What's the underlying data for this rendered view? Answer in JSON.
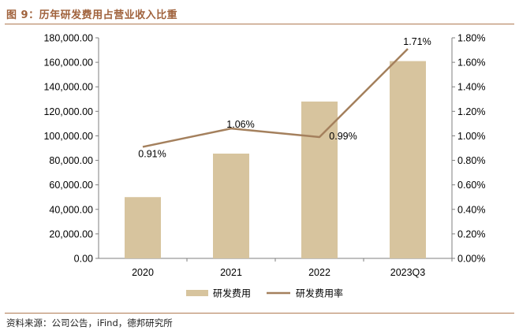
{
  "figure_title": "图 9：历年研发费用占营业收入比重",
  "source_text": "资料来源：公司公告，iFind，德邦研究所",
  "colors": {
    "bar": "#d7c49e",
    "line": "#a4805d",
    "title": "#a0623c",
    "rule": "#b07a52"
  },
  "chart_data": {
    "type": "bar",
    "title": "历年研发费用占营业收入比重",
    "categories": [
      "2020",
      "2021",
      "2022",
      "2023Q3"
    ],
    "series": [
      {
        "name": "研发费用",
        "type": "bar",
        "axis": "left",
        "values": [
          50000,
          85500,
          128000,
          161000
        ]
      },
      {
        "name": "研发费用率",
        "type": "line",
        "axis": "right",
        "values": [
          0.91,
          1.06,
          0.99,
          1.71
        ],
        "labels": [
          "0.91%",
          "1.06%",
          "0.99%",
          "1.71%"
        ]
      }
    ],
    "y_left": {
      "min": 0,
      "max": 180000,
      "ticks": [
        "0.00",
        "20,000.00",
        "40,000.00",
        "60,000.00",
        "80,000.00",
        "100,000.00",
        "120,000.00",
        "140,000.00",
        "160,000.00",
        "180,000.00"
      ]
    },
    "y_right": {
      "min": 0,
      "max": 1.8,
      "ticks": [
        "0.00%",
        "0.20%",
        "0.40%",
        "0.60%",
        "0.80%",
        "1.00%",
        "1.20%",
        "1.40%",
        "1.60%",
        "1.80%"
      ]
    },
    "legend": [
      "研发费用",
      "研发费用率"
    ],
    "legend_position": "bottom",
    "grid": false
  }
}
